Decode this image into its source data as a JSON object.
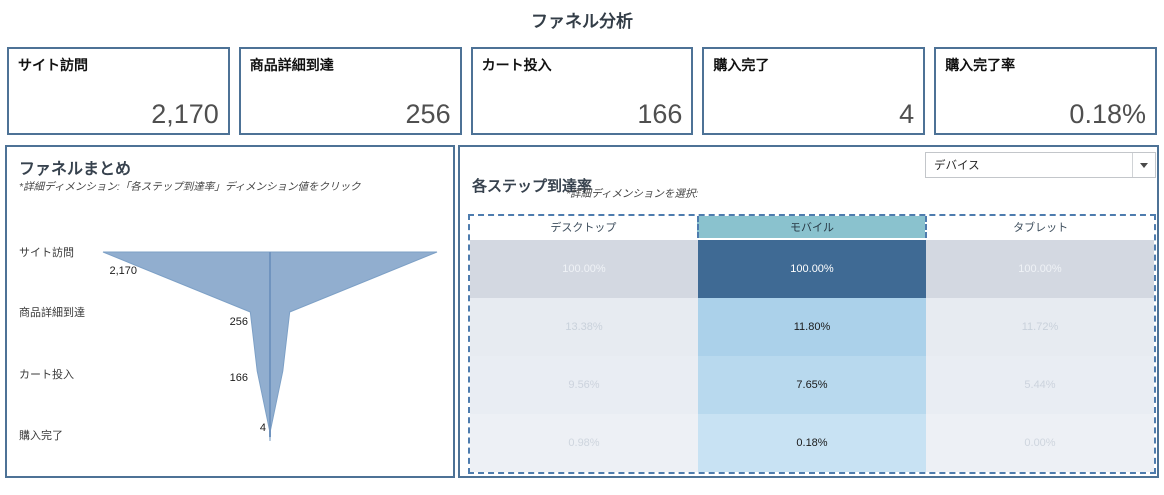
{
  "page_title": "ファネル分析",
  "kpi_cards": [
    {
      "label": "サイト訪問",
      "value": "2,170"
    },
    {
      "label": "商品詳細到達",
      "value": "256"
    },
    {
      "label": "カート投入",
      "value": "166"
    },
    {
      "label": "購入完了",
      "value": "4"
    },
    {
      "label": "購入完了率",
      "value": "0.18%"
    }
  ],
  "funnel_panel": {
    "title": "ファネルまとめ",
    "subtitle": "*詳細ディメンション:「各ステップ到達率」ディメンション値をクリック"
  },
  "steps_panel": {
    "title": "各ステップ到達率",
    "subtitle": "*詳細ディメンションを選択:",
    "dropdown_value": "デバイス",
    "dropdown_icon": "caret-down-icon"
  },
  "colors": {
    "panel_border": "#4d7296",
    "dashed_selection": "#4e7cae",
    "selected_header_bg": "#8ac2ce",
    "funnel_fill": "#91aecf",
    "funnel_edge": "#7da0c6",
    "funnel_center_line": "#7094bf"
  },
  "chart_data": [
    {
      "type": "area",
      "subtype": "funnel",
      "title": "ファネルまとめ",
      "steps": [
        "サイト訪問",
        "商品詳細到達",
        "カート投入",
        "購入完了"
      ],
      "values": [
        2170,
        256,
        166,
        4
      ],
      "labels": [
        "2,170",
        "256",
        "166",
        "4"
      ],
      "orientation": "vertical-symmetric",
      "fill": "#91aecf"
    },
    {
      "type": "heatmap",
      "subtype": "highlight-table",
      "title": "各ステップ到達率",
      "dimension": "デバイス",
      "columns": [
        "デスクトップ",
        "モバイル",
        "タブレット"
      ],
      "selected_column": "モバイル",
      "rows": [
        [
          "100.00%",
          "100.00%",
          "100.00%"
        ],
        [
          "13.38%",
          "11.80%",
          "11.72%"
        ],
        [
          "9.56%",
          "7.65%",
          "5.44%"
        ],
        [
          "0.98%",
          "0.18%",
          "0.00%"
        ]
      ],
      "cell_bg": [
        [
          "#d3d8e1",
          "#3f6a94",
          "#d3d8e1"
        ],
        [
          "#e7ebf1",
          "#abd1ea",
          "#e7ebf1"
        ],
        [
          "#e9edf3",
          "#b8d9ee",
          "#e9edf3"
        ],
        [
          "#edf0f5",
          "#c8e2f3",
          "#edf0f5"
        ]
      ],
      "cell_fg": [
        [
          "#eff2f6",
          "#ffffff",
          "#eff2f6"
        ],
        [
          "#c9d1db",
          "#1a1a1a",
          "#c9d1db"
        ],
        [
          "#ccd3dd",
          "#1a1a1a",
          "#ccd3dd"
        ],
        [
          "#ced5de",
          "#1a1a1a",
          "#ced5de"
        ]
      ]
    }
  ]
}
